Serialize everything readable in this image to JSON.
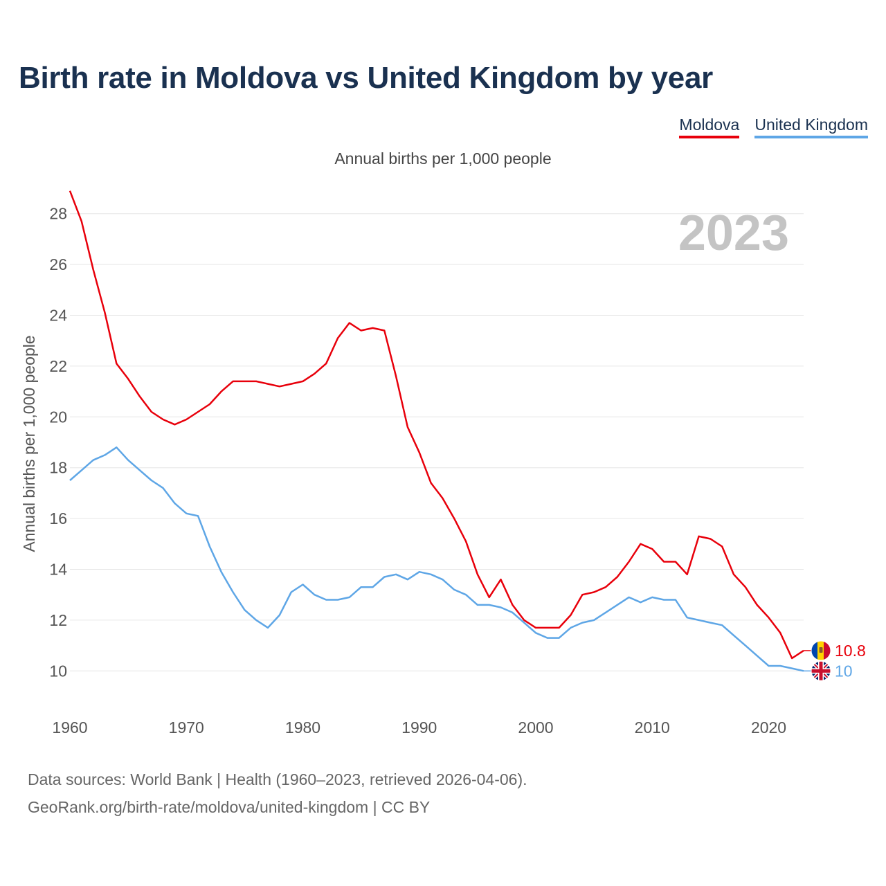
{
  "title": "Birth rate in Moldova vs United Kingdom by year",
  "legend": [
    {
      "label": "Moldova",
      "color": "#e8000b"
    },
    {
      "label": "United Kingdom",
      "color": "#5ea6e6"
    }
  ],
  "subtitle": "Annual births per 1,000 people",
  "year_watermark": "2023",
  "source": {
    "line1": "Data sources: World Bank | Health (1960–2023, retrieved 2026-04-06).",
    "line2": "GeoRank.org/birth-rate/moldova/united-kingdom | CC BY"
  },
  "chart_data": {
    "type": "line",
    "title": "Birth rate in Moldova vs United Kingdom by year",
    "xlabel": "",
    "ylabel": "Annual births per 1,000 people",
    "xlim": [
      1960,
      2023
    ],
    "ylim": [
      9,
      29
    ],
    "x_ticks": [
      1960,
      1970,
      1980,
      1990,
      2000,
      2010,
      2020
    ],
    "y_ticks": [
      10,
      12,
      14,
      16,
      18,
      20,
      22,
      24,
      26,
      28
    ],
    "grid": true,
    "x": [
      1960,
      1961,
      1962,
      1963,
      1964,
      1965,
      1966,
      1967,
      1968,
      1969,
      1970,
      1971,
      1972,
      1973,
      1974,
      1975,
      1976,
      1977,
      1978,
      1979,
      1980,
      1981,
      1982,
      1983,
      1984,
      1985,
      1986,
      1987,
      1988,
      1989,
      1990,
      1991,
      1992,
      1993,
      1994,
      1995,
      1996,
      1997,
      1998,
      1999,
      2000,
      2001,
      2002,
      2003,
      2004,
      2005,
      2006,
      2007,
      2008,
      2009,
      2010,
      2011,
      2012,
      2013,
      2014,
      2015,
      2016,
      2017,
      2018,
      2019,
      2020,
      2021,
      2022,
      2023
    ],
    "series": [
      {
        "name": "Moldova",
        "color": "#e8000b",
        "end_label": "10.8",
        "flag": "moldova-flag-icon",
        "values": [
          28.9,
          27.7,
          25.8,
          24.1,
          22.1,
          21.5,
          20.8,
          20.2,
          19.9,
          19.7,
          19.9,
          20.2,
          20.5,
          21.0,
          21.4,
          21.4,
          21.4,
          21.3,
          21.2,
          21.3,
          21.4,
          21.7,
          22.1,
          23.1,
          23.7,
          23.4,
          23.5,
          23.4,
          21.6,
          19.6,
          18.6,
          17.4,
          16.8,
          16.0,
          15.1,
          13.8,
          12.9,
          13.6,
          12.6,
          12.0,
          11.7,
          11.7,
          11.7,
          12.2,
          13.0,
          13.1,
          13.3,
          13.7,
          14.3,
          15.0,
          14.8,
          14.3,
          14.3,
          13.8,
          15.3,
          15.2,
          14.9,
          13.8,
          13.3,
          12.6,
          12.1,
          11.5,
          10.5,
          10.8
        ]
      },
      {
        "name": "United Kingdom",
        "color": "#5ea6e6",
        "end_label": "10",
        "flag": "uk-flag-icon",
        "values": [
          17.5,
          17.9,
          18.3,
          18.5,
          18.8,
          18.3,
          17.9,
          17.5,
          17.2,
          16.6,
          16.2,
          16.1,
          14.9,
          13.9,
          13.1,
          12.4,
          12.0,
          11.7,
          12.2,
          13.1,
          13.4,
          13.0,
          12.8,
          12.8,
          12.9,
          13.3,
          13.3,
          13.7,
          13.8,
          13.6,
          13.9,
          13.8,
          13.6,
          13.2,
          13.0,
          12.6,
          12.6,
          12.5,
          12.3,
          11.9,
          11.5,
          11.3,
          11.3,
          11.7,
          11.9,
          12.0,
          12.3,
          12.6,
          12.9,
          12.7,
          12.9,
          12.8,
          12.8,
          12.1,
          12.0,
          11.9,
          11.8,
          11.4,
          11.0,
          10.6,
          10.2,
          10.2,
          10.1,
          10.0
        ]
      }
    ]
  }
}
